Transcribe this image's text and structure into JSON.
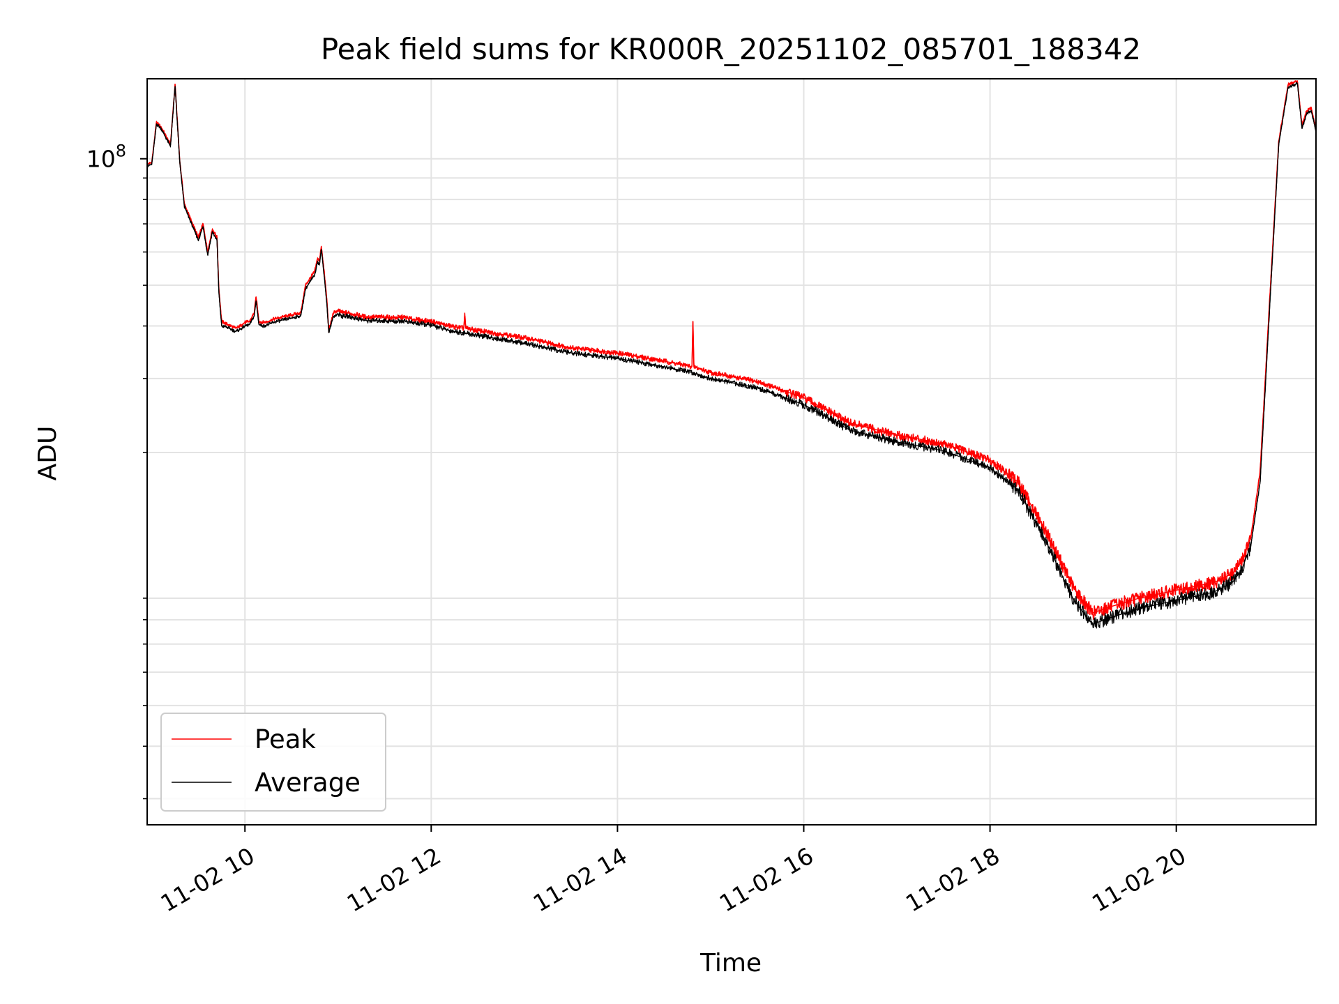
{
  "chart_data": {
    "type": "line",
    "title": "Peak field sums for KR000R_20251102_085701_188342",
    "xlabel": "Time",
    "ylabel": "ADU",
    "y_scale": "log",
    "ylim": [
      2600000,
      155000000
    ],
    "xlim_hours": [
      8.95,
      21.5
    ],
    "x_unit": "hour of 2025-11-02",
    "y_major_tick": {
      "value": 100000000,
      "label_base": "10",
      "label_exp": "8"
    },
    "y_minor_ticks": [
      3000000,
      4000000,
      5000000,
      6000000,
      7000000,
      8000000,
      9000000,
      20000000,
      30000000,
      40000000,
      50000000,
      60000000,
      70000000,
      80000000,
      90000000
    ],
    "x_ticks": [
      {
        "hour": 10,
        "label": "11-02 10"
      },
      {
        "hour": 12,
        "label": "11-02 12"
      },
      {
        "hour": 14,
        "label": "11-02 14"
      },
      {
        "hour": 16,
        "label": "11-02 16"
      },
      {
        "hour": 18,
        "label": "11-02 18"
      },
      {
        "hour": 20,
        "label": "11-02 20"
      }
    ],
    "grid": true,
    "legend_position": "lower-left",
    "series": [
      {
        "name": "Peak",
        "color": "#ff0000",
        "x": [
          8.95,
          9.0,
          9.05,
          9.1,
          9.2,
          9.25,
          9.3,
          9.35,
          9.45,
          9.5,
          9.55,
          9.6,
          9.65,
          9.7,
          9.72,
          9.75,
          9.8,
          9.85,
          9.9,
          9.95,
          10.0,
          10.05,
          10.1,
          10.12,
          10.15,
          10.2,
          10.25,
          10.3,
          10.4,
          10.5,
          10.6,
          10.65,
          10.7,
          10.75,
          10.78,
          10.8,
          10.82,
          10.85,
          10.88,
          10.9,
          10.95,
          11.0,
          11.05,
          11.1,
          11.2,
          11.3,
          11.4,
          11.5,
          11.6,
          11.7,
          11.8,
          12.0,
          12.2,
          12.35,
          12.36,
          12.37,
          12.5,
          13.0,
          13.5,
          14.0,
          14.5,
          14.8,
          14.81,
          14.82,
          15.0,
          15.5,
          16.0,
          16.5,
          17.0,
          17.5,
          18.0,
          18.3,
          18.6,
          18.9,
          19.1,
          19.3,
          19.6,
          20.0,
          20.4,
          20.6,
          20.7,
          20.8,
          20.9,
          21.0,
          21.1,
          21.2,
          21.3,
          21.35,
          21.4,
          21.45,
          21.5
        ],
        "y": [
          97000000,
          98000000,
          122000000,
          119000000,
          108000000,
          150000000,
          99000000,
          78000000,
          69000000,
          65000000,
          70000000,
          60000000,
          68000000,
          65000000,
          49000000,
          41000000,
          40500000,
          40000000,
          39500000,
          40000000,
          40800000,
          41000000,
          43000000,
          47000000,
          41000000,
          40800000,
          41000000,
          41500000,
          42000000,
          42500000,
          43000000,
          50000000,
          52000000,
          54000000,
          58000000,
          57000000,
          62000000,
          54000000,
          46000000,
          39000000,
          43000000,
          43500000,
          43000000,
          43000000,
          42500000,
          42000000,
          42000000,
          42000000,
          41800000,
          42000000,
          41500000,
          41000000,
          40000000,
          39500000,
          43000000,
          39500000,
          39000000,
          37500000,
          35500000,
          34500000,
          33000000,
          32000000,
          41000000,
          32000000,
          31000000,
          29500000,
          27000000,
          23500000,
          22000000,
          21000000,
          19200000,
          17000000,
          13000000,
          9500000,
          8300000,
          8600000,
          9000000,
          9400000,
          9800000,
          10300000,
          11000000,
          12500000,
          18000000,
          45000000,
          110000000,
          150000000,
          153000000,
          120000000,
          130000000,
          132000000,
          118000000
        ]
      },
      {
        "name": "Average",
        "color": "#000000",
        "x": [
          8.95,
          9.0,
          9.05,
          9.1,
          9.2,
          9.25,
          9.3,
          9.35,
          9.45,
          9.5,
          9.55,
          9.6,
          9.65,
          9.7,
          9.72,
          9.75,
          9.8,
          9.85,
          9.9,
          9.95,
          10.0,
          10.05,
          10.1,
          10.12,
          10.15,
          10.2,
          10.25,
          10.3,
          10.4,
          10.5,
          10.6,
          10.65,
          10.7,
          10.75,
          10.78,
          10.8,
          10.82,
          10.85,
          10.88,
          10.9,
          10.95,
          11.0,
          11.05,
          11.1,
          11.2,
          11.3,
          11.4,
          11.5,
          11.6,
          11.7,
          11.8,
          12.0,
          12.2,
          12.5,
          13.0,
          13.5,
          14.0,
          14.5,
          14.8,
          15.0,
          15.5,
          16.0,
          16.5,
          17.0,
          17.5,
          18.0,
          18.3,
          18.6,
          18.9,
          19.1,
          19.3,
          19.6,
          20.0,
          20.4,
          20.6,
          20.7,
          20.8,
          20.9,
          21.0,
          21.1,
          21.2,
          21.3,
          21.35,
          21.4,
          21.45,
          21.5
        ],
        "y": [
          96000000,
          97000000,
          121000000,
          118000000,
          107000000,
          149000000,
          98000000,
          77000000,
          68000000,
          64000000,
          69000000,
          59000000,
          67000000,
          64000000,
          48000000,
          40000000,
          39800000,
          39300000,
          38800000,
          39300000,
          40000000,
          40300000,
          42300000,
          46000000,
          40300000,
          40000000,
          40300000,
          40800000,
          41300000,
          41800000,
          42300000,
          49000000,
          51000000,
          53000000,
          57000000,
          56000000,
          61000000,
          53000000,
          45000000,
          38500000,
          42200000,
          42700000,
          42200000,
          42200000,
          41700000,
          41200000,
          41200000,
          41200000,
          41000000,
          41200000,
          40700000,
          40200000,
          39000000,
          38000000,
          36400000,
          34500000,
          33500000,
          32000000,
          31000000,
          30000000,
          28500000,
          26000000,
          22600000,
          21200000,
          20200000,
          18400000,
          16300000,
          12300000,
          8900000,
          7800000,
          8100000,
          8500000,
          8900000,
          9300000,
          9800000,
          10500000,
          12000000,
          17000000,
          43000000,
          108000000,
          148000000,
          151000000,
          118000000,
          128000000,
          130000000,
          116000000
        ]
      }
    ]
  }
}
